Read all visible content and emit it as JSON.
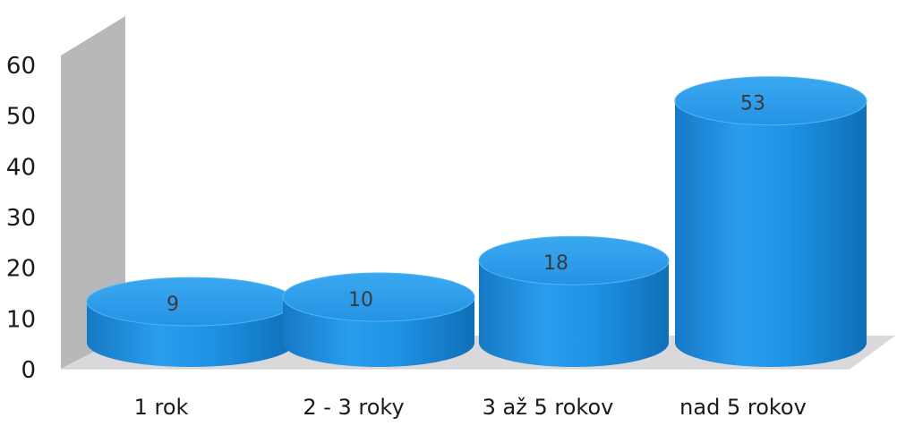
{
  "chart_data": {
    "type": "bar",
    "style": "3d-cylinder",
    "categories": [
      "1 rok",
      "2 - 3 roky",
      "3 až 5 rokov",
      "nad 5 rokov"
    ],
    "values": [
      9,
      10,
      18,
      53
    ],
    "data_labels": [
      "9",
      "10",
      "18",
      "53"
    ],
    "title": "",
    "xlabel": "",
    "ylabel": "",
    "ylim": [
      0,
      60
    ],
    "yticks": [
      "0",
      "10",
      "20",
      "30",
      "40",
      "50",
      "60"
    ],
    "grid": false,
    "legend": "none",
    "colors": {
      "bar_side": "#1a8ee0",
      "bar_top": "#2f9fec",
      "bar_highlight": "#4fb6f5",
      "bar_shadow": "#0f6fb8",
      "wall": "#b7b8ba",
      "floor": "#d9d9db",
      "text": "#1a1a1a"
    }
  }
}
